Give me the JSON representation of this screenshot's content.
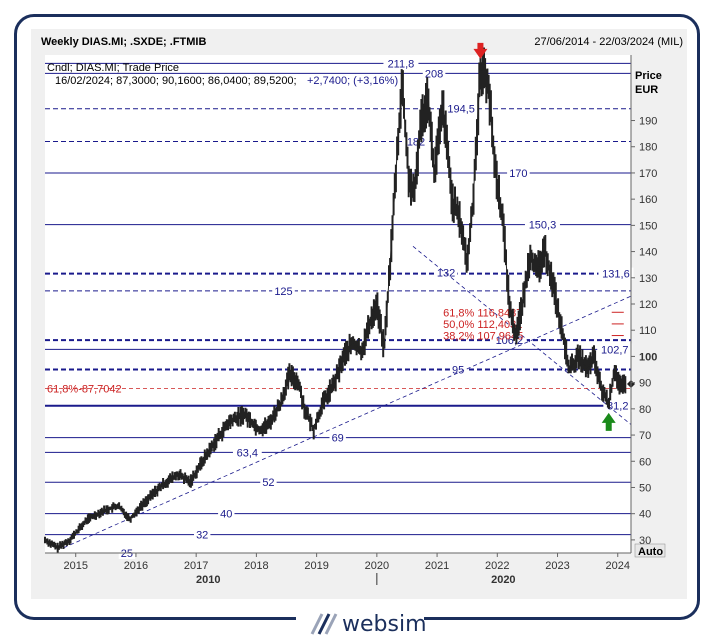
{
  "header": {
    "title": "Weekly DIAS.MI; .SXDE; .FTMIB",
    "range": "27/06/2014 - 22/03/2024 (MIL)"
  },
  "info": {
    "line1": "Cndl; DIAS.MI; Trade Price",
    "line2": "16/02/2024; 87,3000; 90,1600; 86,0400; 89,5200;",
    "change": "+2,7400; (+3,16%)"
  },
  "axis": {
    "title_line1": "Price",
    "title_line2": "EUR",
    "auto_label": "Auto"
  },
  "logo": {
    "text": "websim"
  },
  "colors": {
    "navy": "#1a1a8c",
    "price": "#222222",
    "fib": "#cc2222",
    "arrow_up": "#1a8a1a",
    "arrow_down": "#dd2222",
    "panel": "#f0f0f0"
  },
  "chart_data": {
    "type": "candlestick",
    "title": "Weekly DIAS.MI; .SXDE; .FTMIB",
    "ylabel": "Price EUR",
    "ylim": [
      25,
      215
    ],
    "xlim": [
      2014.49,
      2024.22
    ],
    "y_ticks": [
      30,
      40,
      50,
      60,
      70,
      80,
      90,
      100,
      110,
      120,
      130,
      140,
      150,
      160,
      170,
      180,
      190
    ],
    "x_ticks": [
      "2015",
      "2016",
      "2017",
      "2018",
      "2019",
      "2020",
      "2021",
      "2022",
      "2023",
      "2024"
    ],
    "x_tick_values": [
      2015,
      2016,
      2017,
      2018,
      2019,
      2020,
      2021,
      2022,
      2023,
      2024
    ],
    "x_decades": [
      {
        "label": "2010",
        "x": 2017.2
      },
      {
        "label": "2020",
        "x": 2022.1
      }
    ],
    "series_points": [
      [
        2014.49,
        30
      ],
      [
        2014.7,
        27
      ],
      [
        2014.9,
        30
      ],
      [
        2015.2,
        38
      ],
      [
        2015.45,
        41
      ],
      [
        2015.7,
        43
      ],
      [
        2015.9,
        38
      ],
      [
        2016.05,
        42
      ],
      [
        2016.3,
        48
      ],
      [
        2016.5,
        52
      ],
      [
        2016.7,
        55
      ],
      [
        2016.9,
        52
      ],
      [
        2017.05,
        58
      ],
      [
        2017.3,
        67
      ],
      [
        2017.55,
        75
      ],
      [
        2017.8,
        78
      ],
      [
        2018.05,
        72
      ],
      [
        2018.2,
        74
      ],
      [
        2018.4,
        82
      ],
      [
        2018.55,
        93
      ],
      [
        2018.7,
        90
      ],
      [
        2018.8,
        80
      ],
      [
        2018.95,
        72
      ],
      [
        2019.1,
        82
      ],
      [
        2019.3,
        90
      ],
      [
        2019.45,
        100
      ],
      [
        2019.6,
        105
      ],
      [
        2019.75,
        102
      ],
      [
        2019.9,
        114
      ],
      [
        2020.0,
        120
      ],
      [
        2020.12,
        103
      ],
      [
        2020.22,
        135
      ],
      [
        2020.33,
        175
      ],
      [
        2020.42,
        205
      ],
      [
        2020.52,
        170
      ],
      [
        2020.62,
        160
      ],
      [
        2020.72,
        188
      ],
      [
        2020.85,
        200
      ],
      [
        2020.95,
        170
      ],
      [
        2021.1,
        195
      ],
      [
        2021.25,
        160
      ],
      [
        2021.4,
        150
      ],
      [
        2021.5,
        135
      ],
      [
        2021.6,
        160
      ],
      [
        2021.72,
        210
      ],
      [
        2021.85,
        205
      ],
      [
        2021.95,
        175
      ],
      [
        2022.1,
        150
      ],
      [
        2022.2,
        120
      ],
      [
        2022.3,
        108
      ],
      [
        2022.42,
        120
      ],
      [
        2022.55,
        140
      ],
      [
        2022.65,
        132
      ],
      [
        2022.8,
        140
      ],
      [
        2022.95,
        125
      ],
      [
        2023.05,
        112
      ],
      [
        2023.2,
        95
      ],
      [
        2023.35,
        100
      ],
      [
        2023.5,
        95
      ],
      [
        2023.6,
        100
      ],
      [
        2023.72,
        88
      ],
      [
        2023.85,
        82
      ],
      [
        2023.95,
        95
      ],
      [
        2024.05,
        88
      ],
      [
        2024.13,
        89
      ]
    ],
    "levels": [
      {
        "value": 211.8,
        "label": "211,8",
        "style": "solid",
        "label_x": 2020.4
      },
      {
        "value": 208,
        "label": "208",
        "style": "solid",
        "label_x": 2020.95
      },
      {
        "value": 194.5,
        "label": "194,5",
        "style": "dashed",
        "label_x": 2021.4
      },
      {
        "value": 182,
        "label": "182",
        "style": "dashed",
        "label_x": 2020.65
      },
      {
        "value": 170,
        "label": "170",
        "style": "solid",
        "label_x": 2022.35
      },
      {
        "value": 150.3,
        "label": "150,3",
        "style": "solid",
        "label_x": 2022.75
      },
      {
        "value": 131.6,
        "label": "131,6",
        "style": "dashed-heavy",
        "label_x": 2023.97
      },
      {
        "value": 132,
        "label": "132",
        "style": "none",
        "label_x": 2021.15
      },
      {
        "value": 125,
        "label": "125",
        "style": "dashed",
        "label_x": 2018.45
      },
      {
        "value": 106.2,
        "label": "106,2",
        "style": "dashed-heavy",
        "label_x": 2022.2
      },
      {
        "value": 102.7,
        "label": "102,7",
        "style": "solid",
        "label_x": 2023.95
      },
      {
        "value": 95,
        "label": "95",
        "style": "dashed-heavy",
        "label_x": 2021.35
      },
      {
        "value": 81.2,
        "label": "81,2",
        "style": "solid-heavy",
        "label_x": 2024.0
      },
      {
        "value": 69,
        "label": "69",
        "style": "solid",
        "label_x": 2019.35
      },
      {
        "value": 63.4,
        "label": "63,4",
        "style": "solid",
        "label_x": 2017.85
      },
      {
        "value": 52,
        "label": "52",
        "style": "solid",
        "label_x": 2018.2
      },
      {
        "value": 40,
        "label": "40",
        "style": "solid",
        "label_x": 2017.5
      },
      {
        "value": 32,
        "label": "32",
        "style": "solid",
        "label_x": 2017.1
      },
      {
        "value": 25,
        "label": "25",
        "style": "solid",
        "label_x": 2015.85
      }
    ],
    "fib_levels": [
      {
        "label": "61,8%-87,7042",
        "value": 87.7042
      },
      {
        "label": "61,8% 116,8437",
        "value": 116.8437
      },
      {
        "label": "50,0% 112,4031",
        "value": 112.4031
      },
      {
        "label": "38,2% 107,9645",
        "value": 107.9645
      }
    ],
    "trendlines": [
      {
        "from": [
          2014.8,
          27
        ],
        "to": [
          2024.22,
          123
        ],
        "style": "dashed"
      },
      {
        "from": [
          2020.6,
          142
        ],
        "to": [
          2024.22,
          74
        ],
        "style": "dashed"
      }
    ],
    "markers": [
      {
        "type": "arrow-down",
        "x": 2021.72,
        "y": 212
      },
      {
        "type": "arrow-up",
        "x": 2023.85,
        "y": 80
      },
      {
        "type": "last-price-diamond",
        "x": 2024.22,
        "y": 89.5
      }
    ]
  }
}
